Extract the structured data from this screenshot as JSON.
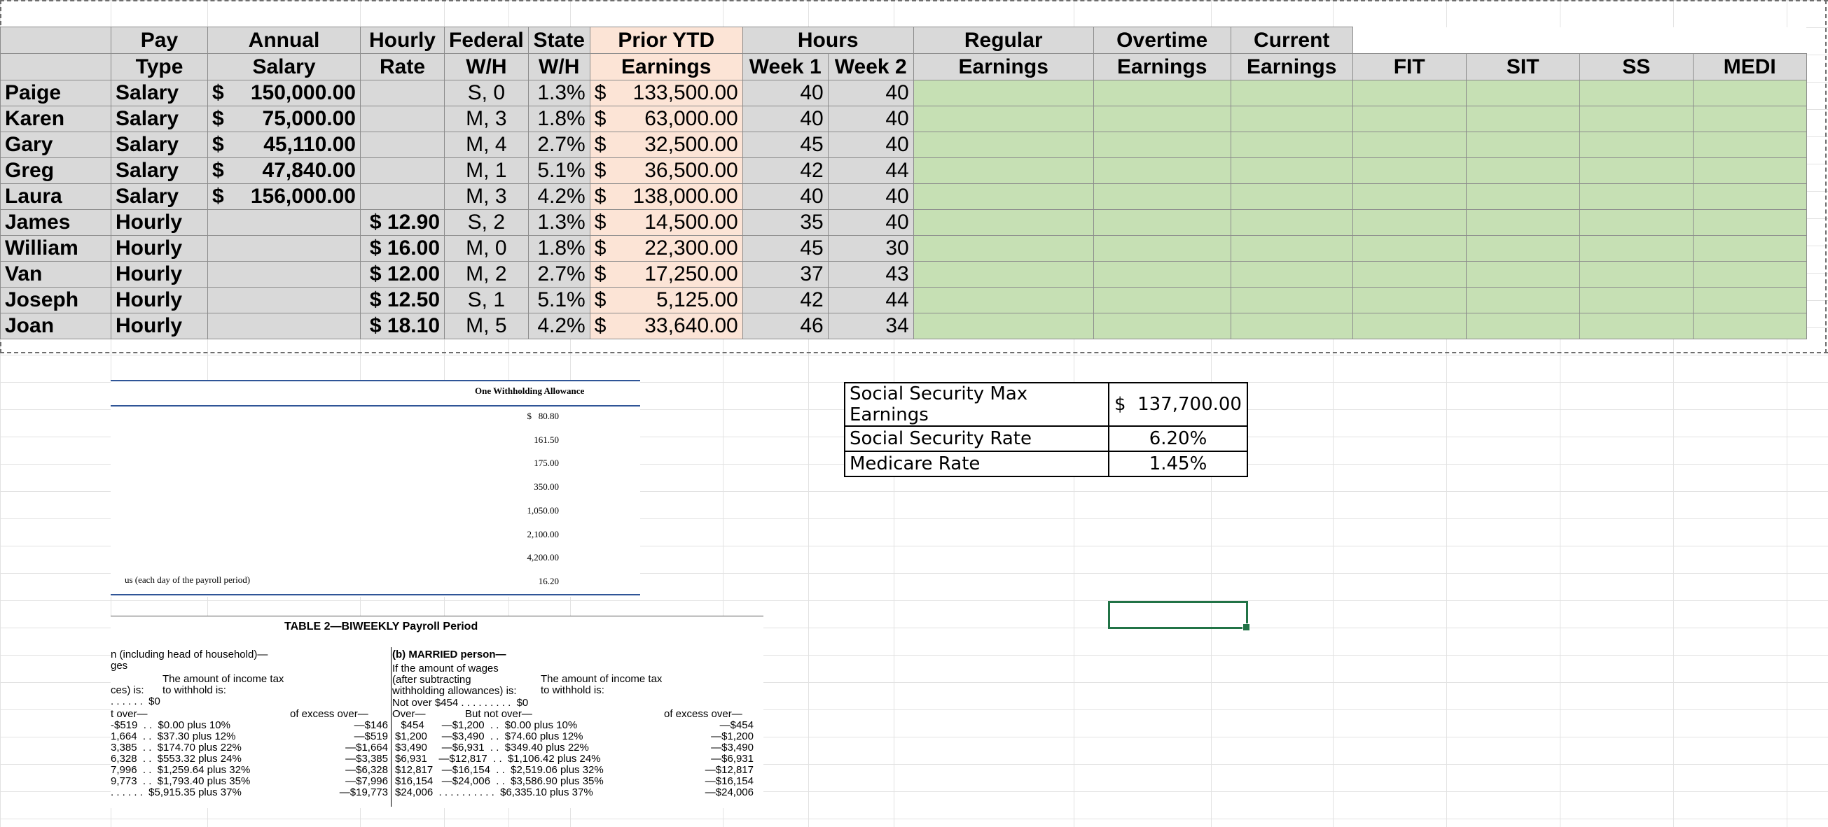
{
  "headers": {
    "pay_type": [
      "Pay",
      "Type"
    ],
    "annual_salary": [
      "Annual",
      "Salary"
    ],
    "hourly_rate": [
      "Hourly",
      "Rate"
    ],
    "federal_wh": [
      "Federal",
      "W/H"
    ],
    "state_wh": [
      "State",
      "W/H"
    ],
    "prior_ytd": [
      "Prior YTD",
      "Earnings"
    ],
    "hours": "Hours",
    "week1": "Week 1",
    "week2": "Week 2",
    "regular": [
      "Regular",
      "Earnings"
    ],
    "overtime": [
      "Overtime",
      "Earnings"
    ],
    "current": [
      "Current",
      "Earnings"
    ],
    "fit": "FIT",
    "sit": "SIT",
    "ss": "SS",
    "medi": "MEDI"
  },
  "employees": [
    {
      "name": "Paige",
      "pay_type": "Salary",
      "annual": "150,000.00",
      "hourly": "",
      "fed": "S, 0",
      "state": "1.3%",
      "ytd": "133,500.00",
      "w1": "40",
      "w2": "40"
    },
    {
      "name": "Karen",
      "pay_type": "Salary",
      "annual": "75,000.00",
      "hourly": "",
      "fed": "M, 3",
      "state": "1.8%",
      "ytd": "63,000.00",
      "w1": "40",
      "w2": "40"
    },
    {
      "name": "Gary",
      "pay_type": "Salary",
      "annual": "45,110.00",
      "hourly": "",
      "fed": "M, 4",
      "state": "2.7%",
      "ytd": "32,500.00",
      "w1": "45",
      "w2": "40"
    },
    {
      "name": "Greg",
      "pay_type": "Salary",
      "annual": "47,840.00",
      "hourly": "",
      "fed": "M, 1",
      "state": "5.1%",
      "ytd": "36,500.00",
      "w1": "42",
      "w2": "44"
    },
    {
      "name": "Laura",
      "pay_type": "Salary",
      "annual": "156,000.00",
      "hourly": "",
      "fed": "M, 3",
      "state": "4.2%",
      "ytd": "138,000.00",
      "w1": "40",
      "w2": "40"
    },
    {
      "name": "James",
      "pay_type": "Hourly",
      "annual": "",
      "hourly": "$ 12.90",
      "fed": "S, 2",
      "state": "1.3%",
      "ytd": "14,500.00",
      "w1": "35",
      "w2": "40"
    },
    {
      "name": "William",
      "pay_type": "Hourly",
      "annual": "",
      "hourly": "$ 16.00",
      "fed": "M, 0",
      "state": "1.8%",
      "ytd": "22,300.00",
      "w1": "45",
      "w2": "30"
    },
    {
      "name": "Van",
      "pay_type": "Hourly",
      "annual": "",
      "hourly": "$ 12.00",
      "fed": "M, 2",
      "state": "2.7%",
      "ytd": "17,250.00",
      "w1": "37",
      "w2": "43"
    },
    {
      "name": "Joseph",
      "pay_type": "Hourly",
      "annual": "",
      "hourly": "$ 12.50",
      "fed": "S, 1",
      "state": "5.1%",
      "ytd": "5,125.00",
      "w1": "42",
      "w2": "44"
    },
    {
      "name": "Joan",
      "pay_type": "Hourly",
      "annual": "",
      "hourly": "$ 18.10",
      "fed": "M, 5",
      "state": "4.2%",
      "ytd": "33,640.00",
      "w1": "46",
      "w2": "34"
    }
  ],
  "currency_symbol": "$",
  "social_security": {
    "rows": [
      {
        "label": "Social Security Max Earnings",
        "value": "$  137,700.00"
      },
      {
        "label": "Social Security Rate",
        "value": "6.20%"
      },
      {
        "label": "Medicare Rate",
        "value": "1.45%"
      }
    ]
  },
  "allowance_table": {
    "title": "One Withholding Allowance",
    "values": [
      "$   80.80",
      "161.50",
      "175.00",
      "350.00",
      "1,050.00",
      "2,100.00",
      "4,200.00",
      "16.20"
    ],
    "row_label_last": "us (each day of the payroll period)"
  },
  "table2": {
    "title": "TABLE 2—BIWEEKLY Payroll Period",
    "single_head": "n (including head of household)—",
    "single_sub1": "ges",
    "single_amount_head": "The amount of income tax\nto withhold is:",
    "single_sub2": "ces) is:",
    "single_not_over": ". . . . . .  $0",
    "single_cols": "t over—",
    "single_excess": "of excess over—",
    "single_rows": [
      "-$519  . .  $0.00 plus 10%",
      "1,664  . .  $37.30 plus 12%",
      "3,385  . .  $174.70 plus 22%",
      "6,328  . .  $553.32 plus 24%",
      "7,996  . .  $1,259.64 plus 32%",
      "9,773  . .  $1,793.40 plus 35%",
      ". . . . . .  $5,915.35 plus 37%"
    ],
    "single_excess_vals": [
      "—$146",
      "—$519",
      "—$1,664",
      "—$3,385",
      "—$6,328",
      "—$7,996",
      "—$19,773"
    ],
    "married_head": "(b) MARRIED person—",
    "married_sub": "If the amount of wages\n(after subtracting\nwithholding allowances) is:",
    "married_amount_head": "The amount of income tax\nto withhold is:",
    "married_not_over": "Not over $454 . . . . . . . . .  $0",
    "married_over": "Over—",
    "married_but": "But not over—",
    "married_excess": "of excess over—",
    "married_rows": [
      "  $454      —$1,200  . .  $0.00 plus 10%",
      "$1,200     —$3,490  . .  $74.60 plus 12%",
      "$3,490     —$6,931  . .  $349.40 plus 22%",
      "$6,931    —$12,817  . .  $1,106.42 plus 24%",
      "$12,817   —$16,154  . .  $2,519.06 plus 32%",
      "$16,154   —$24,006  . .  $3,586.90 plus 35%",
      "$24,006  . . . . . . . . . .  $6,335.10 plus 37%"
    ],
    "married_excess_vals": [
      "—$454",
      "—$1,200",
      "—$3,490",
      "—$6,931",
      "—$12,817",
      "—$16,154",
      "—$24,006"
    ]
  }
}
